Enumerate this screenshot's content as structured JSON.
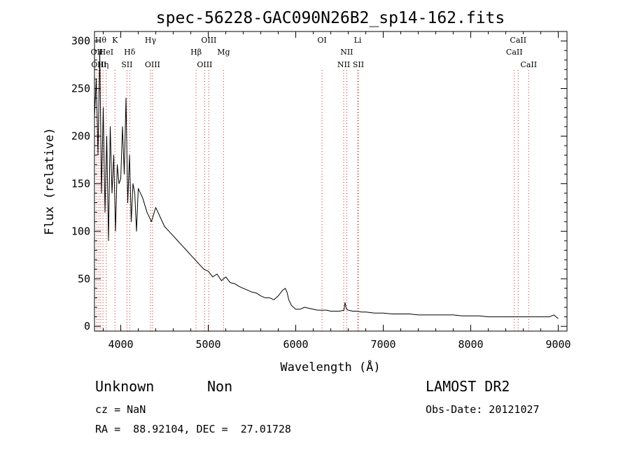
{
  "chart_data": {
    "type": "line",
    "title": "spec-56228-GAC090N26B2_sp14-162.fits",
    "xlabel": "Wavelength (Å)",
    "ylabel": "Flux (relative)",
    "xlim": [
      3700,
      9100
    ],
    "ylim": [
      -5,
      310
    ],
    "xticks": [
      4000,
      5000,
      6000,
      7000,
      8000,
      9000
    ],
    "yticks": [
      0,
      50,
      100,
      150,
      200,
      250,
      300
    ],
    "line_color": "#000000",
    "marker_color": "#d02020",
    "series": [
      {
        "x": [
          3700,
          3720,
          3740,
          3760,
          3780,
          3800,
          3820,
          3840,
          3860,
          3880,
          3900,
          3920,
          3940,
          3960,
          3980,
          4000,
          4020,
          4040,
          4060,
          4080,
          4100,
          4120,
          4140,
          4160,
          4180,
          4200,
          4250,
          4300,
          4350,
          4400,
          4450,
          4500,
          4550,
          4600,
          4650,
          4700,
          4750,
          4800,
          4850,
          4900,
          4950,
          5000,
          5050,
          5100,
          5150,
          5200,
          5250,
          5300,
          5350,
          5400,
          5450,
          5500,
          5550,
          5600,
          5650,
          5700,
          5750,
          5800,
          5850,
          5880,
          5900,
          5920,
          5950,
          6000,
          6050,
          6100,
          6150,
          6200,
          6250,
          6300,
          6350,
          6400,
          6450,
          6500,
          6550,
          6563,
          6580,
          6600,
          6650,
          6700,
          6750,
          6800,
          6900,
          7000,
          7100,
          7200,
          7300,
          7400,
          7500,
          7600,
          7700,
          7800,
          7900,
          8000,
          8100,
          8200,
          8300,
          8400,
          8500,
          8600,
          8700,
          8800,
          8900,
          8950,
          9000
        ],
        "values": [
          220,
          260,
          180,
          290,
          140,
          230,
          120,
          200,
          90,
          210,
          140,
          180,
          100,
          170,
          150,
          155,
          210,
          160,
          240,
          130,
          180,
          110,
          150,
          140,
          100,
          145,
          135,
          120,
          110,
          125,
          115,
          105,
          100,
          95,
          90,
          85,
          80,
          75,
          70,
          65,
          60,
          58,
          52,
          55,
          48,
          52,
          46,
          45,
          42,
          40,
          38,
          36,
          35,
          32,
          30,
          30,
          28,
          32,
          38,
          40,
          36,
          28,
          22,
          18,
          18,
          20,
          19,
          18,
          17,
          17,
          17,
          16,
          16,
          16,
          17,
          25,
          18,
          17,
          16,
          16,
          15,
          15,
          14,
          14,
          13,
          13,
          13,
          12,
          12,
          12,
          12,
          12,
          11,
          11,
          11,
          10,
          10,
          10,
          10,
          10,
          10,
          10,
          10,
          12,
          8
        ]
      }
    ],
    "line_markers": [
      {
        "x": 3727,
        "label": "OII",
        "row": 1
      },
      {
        "x": 3750,
        "label": "OIII",
        "row": 2
      },
      {
        "x": 3771,
        "label": "Hθ",
        "row": 0
      },
      {
        "x": 3797,
        "label": "Hη",
        "row": 2
      },
      {
        "x": 3835,
        "label": "HeI",
        "row": 1
      },
      {
        "x": 3934,
        "label": "K",
        "row": 0
      },
      {
        "x": 4071,
        "label": "SII",
        "row": 2
      },
      {
        "x": 4102,
        "label": "Hδ",
        "row": 1
      },
      {
        "x": 4340,
        "label": "Hγ",
        "row": 0
      },
      {
        "x": 4363,
        "label": "OIII",
        "row": 2
      },
      {
        "x": 4861,
        "label": "Hβ",
        "row": 1
      },
      {
        "x": 4959,
        "label": "OIII",
        "row": 2
      },
      {
        "x": 5007,
        "label": "OIII",
        "row": 0
      },
      {
        "x": 5175,
        "label": "Mg",
        "row": 1
      },
      {
        "x": 6300,
        "label": "OI",
        "row": 0
      },
      {
        "x": 6548,
        "label": "NII",
        "row": 2
      },
      {
        "x": 6583,
        "label": "NII",
        "row": 1
      },
      {
        "x": 6708,
        "label": "Li",
        "row": 0
      },
      {
        "x": 6716,
        "label": "SII",
        "row": 2
      },
      {
        "x": 8498,
        "label": "CaII",
        "row": 1
      },
      {
        "x": 8542,
        "label": "CaII",
        "row": 0
      },
      {
        "x": 8662,
        "label": "CaII",
        "row": 2
      }
    ]
  },
  "info": {
    "class": "Unknown",
    "subclass": "Non",
    "survey": "LAMOST DR2",
    "cz": "cz = NaN",
    "obs_date": "Obs-Date: 20121027",
    "radec": "RA =  88.92104, DEC =  27.01728"
  }
}
